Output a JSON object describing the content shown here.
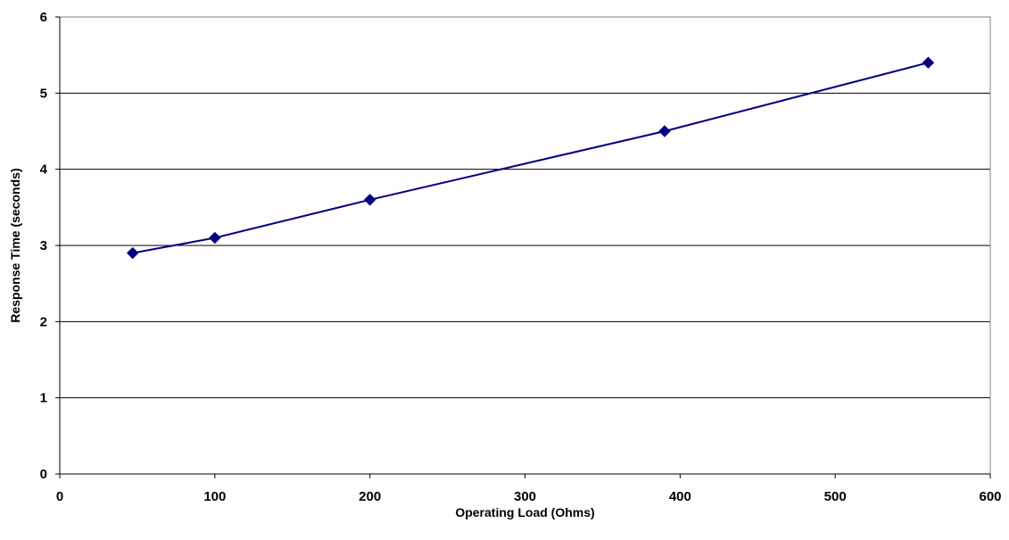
{
  "chart_data": {
    "type": "line",
    "title": "",
    "xlabel": "Operating Load (Ohms)",
    "ylabel": "Response Time (seconds)",
    "xlim": [
      0,
      600
    ],
    "ylim": [
      0,
      6
    ],
    "xticks": [
      0,
      100,
      200,
      300,
      400,
      500,
      600
    ],
    "yticks": [
      0,
      1,
      2,
      3,
      4,
      5,
      6
    ],
    "grid": "horizontal",
    "legend": "none",
    "series": [
      {
        "color": "#000080",
        "marker": "diamond",
        "points": [
          {
            "x": 47,
            "y": 2.9
          },
          {
            "x": 100,
            "y": 3.1
          },
          {
            "x": 200,
            "y": 3.6
          },
          {
            "x": 390,
            "y": 4.5
          },
          {
            "x": 560,
            "y": 5.4
          }
        ]
      }
    ]
  }
}
